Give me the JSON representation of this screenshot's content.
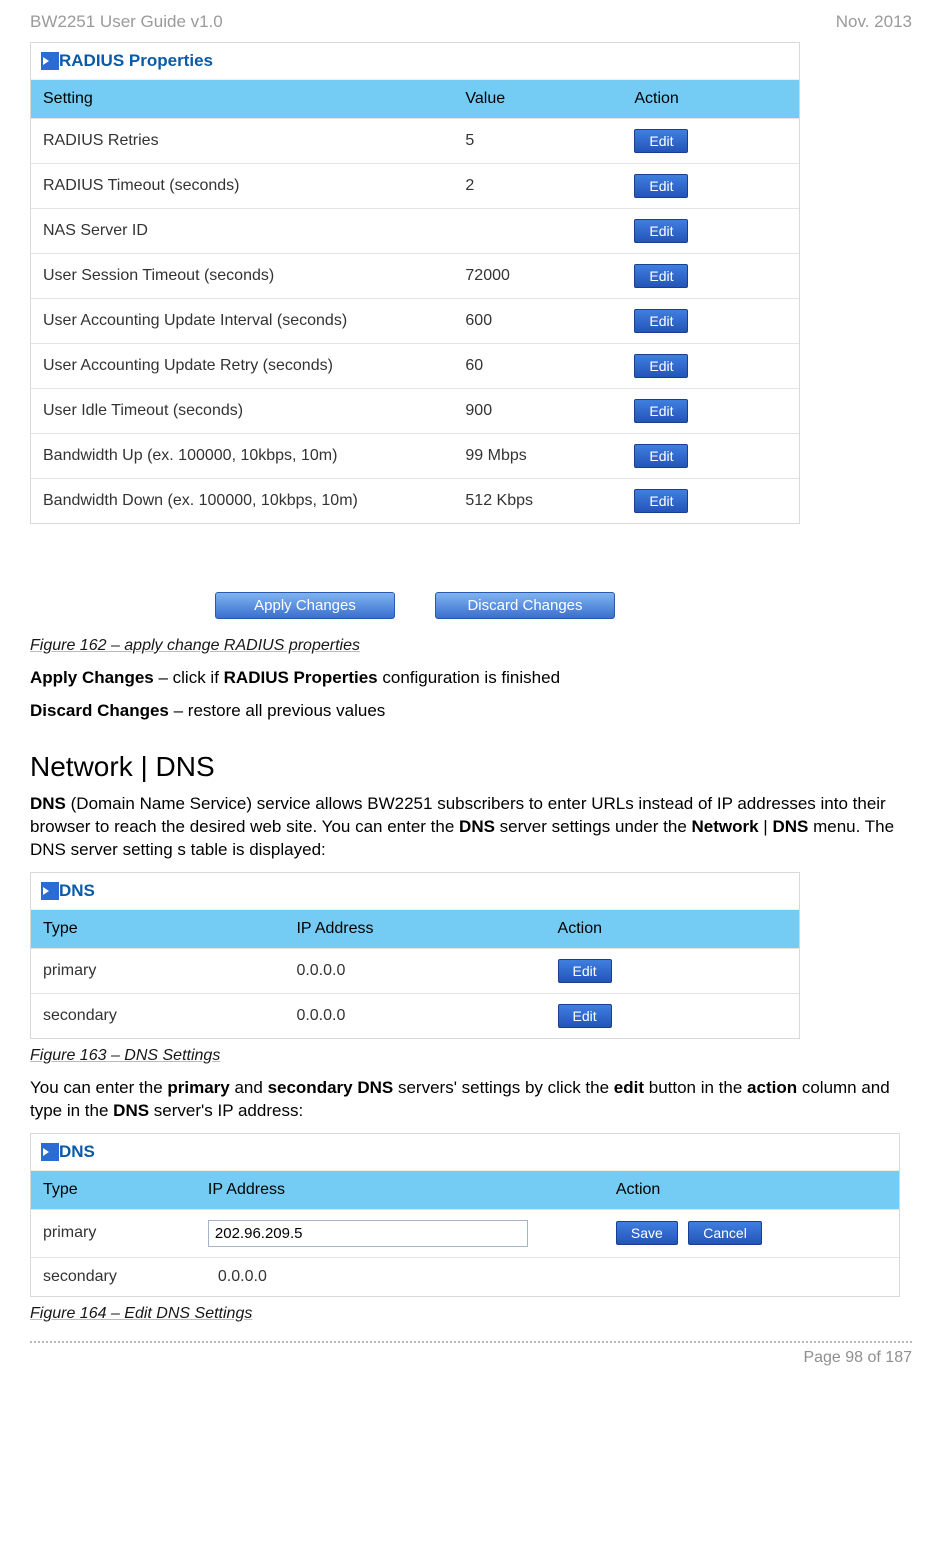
{
  "header": {
    "left": "BW2251 User Guide v1.0",
    "right": "Nov.  2013"
  },
  "radius_panel": {
    "title": "RADIUS Properties",
    "columns": [
      "Setting",
      "Value",
      "Action"
    ],
    "rows": [
      {
        "setting": "RADIUS Retries",
        "value": "5",
        "action": "Edit"
      },
      {
        "setting": "RADIUS Timeout (seconds)",
        "value": "2",
        "action": "Edit"
      },
      {
        "setting": "NAS Server ID",
        "value": "",
        "action": "Edit"
      },
      {
        "setting": "User Session Timeout (seconds)",
        "value": "72000",
        "action": "Edit"
      },
      {
        "setting": "User Accounting Update Interval (seconds)",
        "value": "600",
        "action": "Edit"
      },
      {
        "setting": "User Accounting Update Retry (seconds)",
        "value": "60",
        "action": "Edit"
      },
      {
        "setting": "User Idle Timeout (seconds)",
        "value": "900",
        "action": "Edit"
      },
      {
        "setting": "Bandwidth Up (ex. 100000, 10kbps, 10m)",
        "value": "99 Mbps",
        "action": "Edit"
      },
      {
        "setting": "Bandwidth Down (ex. 100000, 10kbps, 10m)",
        "value": "512 Kbps",
        "action": "Edit"
      }
    ],
    "col_widths": [
      "55%",
      "22%",
      "23%"
    ],
    "header_bg": "#74ccf4"
  },
  "change_buttons": {
    "apply": "Apply Changes",
    "discard": "Discard Changes"
  },
  "captions": {
    "fig162": "Figure 162 – apply change RADIUS properties",
    "fig163": "Figure 163 – DNS Settings",
    "fig164": "Figure 164 – Edit DNS Settings"
  },
  "paragraphs": {
    "apply_line_pre": "Apply Changes",
    "apply_line_mid": " – click if ",
    "apply_line_bold": "RADIUS Properties",
    "apply_line_post": " configuration is finished",
    "discard_line_pre": "Discard Changes",
    "discard_line_post": " – restore all previous values",
    "dns_heading": "Network | DNS",
    "dns_p1_a": "DNS",
    "dns_p1_b": " (Domain Name Service) service allows BW2251 subscribers to enter URLs instead of IP addresses into their browser to reach the desired web site. You can enter the ",
    "dns_p1_c": "DNS",
    "dns_p1_d": " server settings under the ",
    "dns_p1_e": "Network",
    "dns_p1_f": " | ",
    "dns_p1_g": "DNS",
    "dns_p1_h": " menu. The DNS server setting s table is displayed:",
    "dns_p2_a": "You can enter the ",
    "dns_p2_b": "primary",
    "dns_p2_c": " and ",
    "dns_p2_d": "secondary DNS",
    "dns_p2_e": " servers' settings by click the ",
    "dns_p2_f": "edit",
    "dns_p2_g": " button in the ",
    "dns_p2_h": "action",
    "dns_p2_i": " column and type in the ",
    "dns_p2_j": "DNS",
    "dns_p2_k": " server's IP address:"
  },
  "dns_panel_1": {
    "title": "DNS",
    "columns": [
      "Type",
      "IP Address",
      "Action"
    ],
    "rows": [
      {
        "type": "primary",
        "ip": "0.0.0.0",
        "action": "Edit"
      },
      {
        "type": "secondary",
        "ip": "0.0.0.0",
        "action": "Edit"
      }
    ],
    "col_widths": [
      "33%",
      "34%",
      "33%"
    ]
  },
  "dns_panel_2": {
    "title": "DNS",
    "columns": [
      "Type",
      "IP Address",
      "Action"
    ],
    "rows": [
      {
        "type": "primary",
        "ip_input": "202.96.209.5",
        "save": "Save",
        "cancel": "Cancel"
      },
      {
        "type": "secondary",
        "ip": "0.0.0.0"
      }
    ],
    "col_widths": [
      "19%",
      "47%",
      "34%"
    ]
  },
  "footer": {
    "page": "Page 98 of 187"
  },
  "colors": {
    "header_gray": "#9a9a9a",
    "title_blue": "#0a5aa7",
    "th_bg": "#74ccf4",
    "btn_grad_top": "#3f7fe0",
    "btn_grad_bot": "#2454b8"
  }
}
